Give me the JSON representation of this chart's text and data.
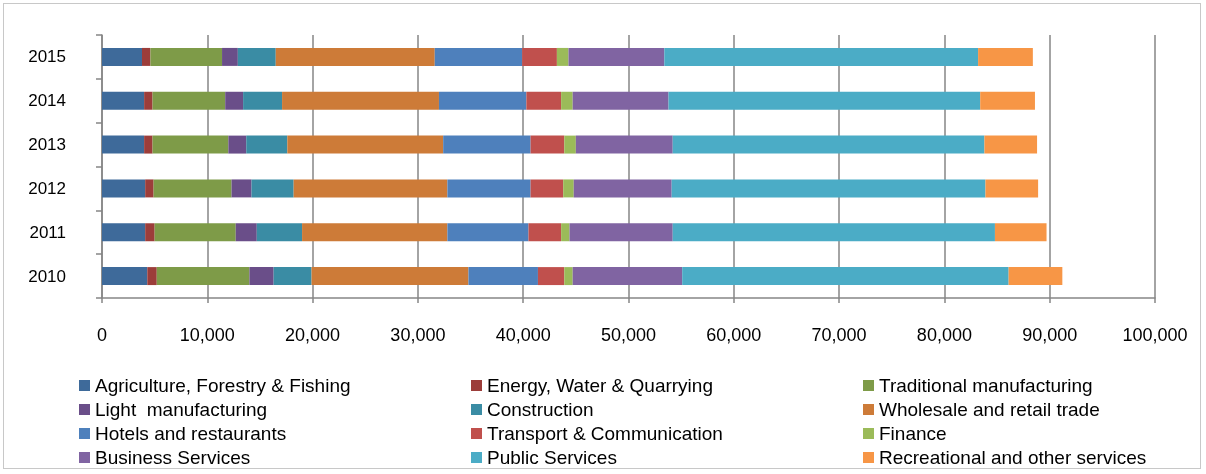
{
  "chart_data": {
    "type": "bar",
    "orientation": "horizontal",
    "stacked": true,
    "categories": [
      "2015",
      "2014",
      "2013",
      "2012",
      "2011",
      "2010"
    ],
    "series": [
      {
        "name": "Agriculture, Forestry & Fishing",
        "color": "#3e6a9a",
        "values": [
          3800,
          4000,
          4000,
          4100,
          4100,
          4300
        ]
      },
      {
        "name": "Energy, Water & Quarrying",
        "color": "#9c3d3a",
        "values": [
          800,
          800,
          800,
          800,
          900,
          900
        ]
      },
      {
        "name": "Traditional manufacturing",
        "color": "#7e9b48",
        "values": [
          6800,
          6900,
          7200,
          7400,
          7700,
          8800
        ]
      },
      {
        "name": "Light  manufacturing",
        "color": "#6a4e89",
        "values": [
          1500,
          1700,
          1700,
          1900,
          2000,
          2300
        ]
      },
      {
        "name": "Construction",
        "color": "#3a8ca4",
        "values": [
          3600,
          3700,
          3900,
          4000,
          4300,
          3600
        ]
      },
      {
        "name": "Wholesale and retail trade",
        "color": "#cd7b38",
        "values": [
          15100,
          14900,
          14800,
          14600,
          13800,
          14900
        ]
      },
      {
        "name": "Hotels and restaurants",
        "color": "#4e80bc",
        "values": [
          8300,
          8300,
          8300,
          7900,
          7700,
          6600
        ]
      },
      {
        "name": "Transport & Communication",
        "color": "#c0504d",
        "values": [
          3300,
          3300,
          3200,
          3100,
          3100,
          2500
        ]
      },
      {
        "name": "Finance",
        "color": "#9bbb59",
        "values": [
          1100,
          1100,
          1100,
          1000,
          800,
          800
        ]
      },
      {
        "name": "Business Services",
        "color": "#8064a2",
        "values": [
          9100,
          9100,
          9200,
          9300,
          9800,
          10400
        ]
      },
      {
        "name": "Public Services",
        "color": "#4bacc6",
        "values": [
          29800,
          29600,
          29600,
          29800,
          30600,
          31000
        ]
      },
      {
        "name": "Recreational and other services",
        "color": "#f79646",
        "values": [
          5200,
          5200,
          5000,
          5000,
          4900,
          5100
        ]
      }
    ],
    "xlim": [
      0,
      100000
    ],
    "xticks": [
      0,
      {
        "value": 10000,
        "label": "10,000"
      },
      {
        "value": 20000,
        "label": "20,000"
      },
      {
        "value": 30000,
        "label": "30,000"
      },
      {
        "value": 40000,
        "label": "40,000"
      },
      {
        "value": 50000,
        "label": "50,000"
      },
      {
        "value": 60000,
        "label": "60,000"
      },
      {
        "value": 70000,
        "label": "70,000"
      },
      {
        "value": 80000,
        "label": "80,000"
      },
      {
        "value": 90000,
        "label": "90,000"
      },
      {
        "value": 100000,
        "label": "100,000"
      }
    ],
    "grid": "x",
    "legend": "bottom"
  }
}
